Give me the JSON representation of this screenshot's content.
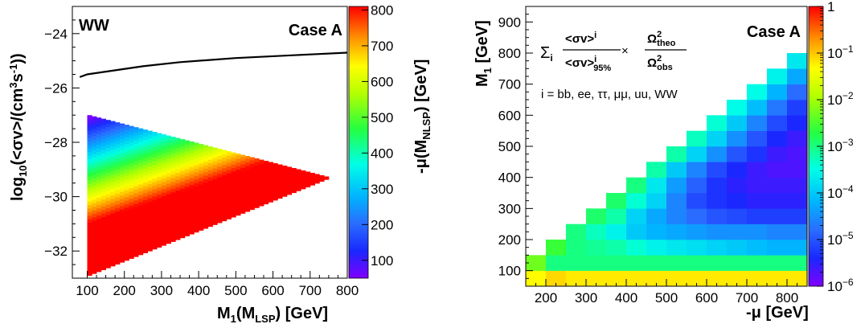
{
  "chart_data": [
    {
      "type": "heatmap",
      "panel_label": "WW",
      "case_label": "Case A",
      "xlabel": "M₁(Mₗₛₚ) [GeV]",
      "xlabel_main": "M",
      "xlabel_sub1": "1",
      "xlabel_mid": "(M",
      "xlabel_sub2": "LSP",
      "xlabel_end": ") [GeV]",
      "ylabel_main": "log",
      "ylabel_sub": "10",
      "ylabel_mid": "(<σv>/(cm",
      "ylabel_sup1": "3",
      "ylabel_s": "s",
      "ylabel_sup2": "-1",
      "ylabel_end": "))",
      "zlabel_main": "-μ(M",
      "zlabel_sub": "NLSP",
      "zlabel_end": ") [GeV]",
      "xlim": [
        60,
        800
      ],
      "ylim": [
        -33,
        -23
      ],
      "zlim": [
        50,
        810
      ],
      "x_ticks": [
        100,
        200,
        300,
        400,
        500,
        600,
        700,
        800
      ],
      "y_ticks": [
        -32,
        -30,
        -28,
        -26,
        -24
      ],
      "z_ticks": [
        100,
        200,
        300,
        400,
        500,
        600,
        700,
        800
      ],
      "region": {
        "apex_x": 750,
        "apex_y": -29.3,
        "x_min": 100,
        "y_top_at_xmin": -27.0,
        "y_bottom_at_xmin": -32.9
      },
      "limit_line": {
        "x": [
          80,
          100,
          150,
          250,
          350,
          500,
          650,
          800
        ],
        "y": [
          -25.6,
          -25.5,
          -25.4,
          -25.2,
          -25.05,
          -24.9,
          -24.8,
          -24.7
        ]
      }
    },
    {
      "type": "heatmap",
      "case_label": "Case A",
      "xlabel_main": "-μ [GeV]",
      "ylabel_main": "M",
      "ylabel_sub": "1",
      "ylabel_end": " [GeV]",
      "formula": {
        "sum": "Σ",
        "sum_sub": "i",
        "num": "<σv>",
        "num_sup": "i",
        "den": "<σv>",
        "den_sup": "i",
        "den_sub": "95%",
        "times": "×",
        "omega_num": "Ω",
        "omega_num_sup": "2",
        "omega_num_sub": "theo",
        "omega_den": "Ω",
        "omega_den_sup": "2",
        "omega_den_sub": "obs",
        "channels": "i = bb, ee, ττ, μμ, uu, WW"
      },
      "xlim": [
        150,
        850
      ],
      "ylim": [
        50,
        950
      ],
      "x_ticks": [
        200,
        300,
        400,
        500,
        600,
        700,
        800
      ],
      "y_ticks": [
        100,
        200,
        300,
        400,
        500,
        600,
        700,
        800,
        900
      ],
      "z_scale": "log",
      "zlim_log10": [
        -6,
        0
      ],
      "z_ticks": [
        {
          "exp": 0,
          "label": "1"
        },
        {
          "exp": -1,
          "label": "10",
          "sup": "−1"
        },
        {
          "exp": -2,
          "label": "10",
          "sup": "−2"
        },
        {
          "exp": -3,
          "label": "10",
          "sup": "−3"
        },
        {
          "exp": -4,
          "label": "10",
          "sup": "−4"
        },
        {
          "exp": -5,
          "label": "10",
          "sup": "−5"
        },
        {
          "exp": -6,
          "label": "10",
          "sup": "−6"
        }
      ],
      "x_bins": [
        150,
        200,
        250,
        300,
        350,
        400,
        450,
        500,
        550,
        600,
        650,
        700,
        750,
        800,
        850
      ],
      "y_bins": [
        50,
        100,
        150,
        200,
        250,
        300,
        350,
        400,
        450,
        500,
        550,
        600,
        650,
        700,
        750,
        800
      ],
      "cells_log10": [
        [
          -1.3,
          -1.1,
          -1.2,
          -1.2,
          -1.2,
          -1.2,
          -1.2,
          -1.2,
          -1.2,
          -1.2,
          -1.2,
          -1.2,
          -1.2,
          -1.2
        ],
        [
          -2.3,
          -3.0,
          -3.0,
          -3.0,
          -3.0,
          -3.0,
          -3.0,
          -3.0,
          -3.0,
          -3.0,
          -3.0,
          -3.0,
          -3.0,
          -3.0
        ],
        [
          null,
          -2.6,
          -3.0,
          -3.1,
          -3.2,
          -3.4,
          -3.6,
          -3.7,
          -3.8,
          -3.9,
          -4.0,
          -4.1,
          -4.2,
          -4.2
        ],
        [
          null,
          null,
          -3.0,
          -3.3,
          -3.6,
          -4.0,
          -4.2,
          -4.3,
          -4.4,
          -4.5,
          -4.5,
          -4.5,
          -4.6,
          -4.6
        ],
        [
          null,
          null,
          null,
          -2.9,
          -3.2,
          -3.9,
          -4.3,
          -4.6,
          -4.8,
          -5.0,
          -5.1,
          -5.2,
          -5.2,
          -5.2
        ],
        [
          null,
          null,
          null,
          null,
          -2.9,
          -3.4,
          -3.9,
          -4.6,
          -5.1,
          -5.3,
          -5.4,
          -5.5,
          -5.5,
          -5.5
        ],
        [
          null,
          null,
          null,
          null,
          null,
          -3.0,
          -3.7,
          -4.4,
          -4.9,
          -5.3,
          -5.5,
          -5.6,
          -5.6,
          -5.6
        ],
        [
          null,
          null,
          null,
          null,
          null,
          null,
          -3.2,
          -4.0,
          -4.6,
          -5.1,
          -5.4,
          -5.6,
          -5.7,
          -5.7
        ],
        [
          null,
          null,
          null,
          null,
          null,
          null,
          null,
          -3.2,
          -3.9,
          -4.5,
          -5.0,
          -5.3,
          -5.6,
          -5.7
        ],
        [
          null,
          null,
          null,
          null,
          null,
          null,
          null,
          null,
          -3.3,
          -3.9,
          -4.5,
          -5.0,
          -5.4,
          -5.6
        ],
        [
          null,
          null,
          null,
          null,
          null,
          null,
          null,
          null,
          null,
          -3.4,
          -4.0,
          -4.6,
          -5.1,
          -5.4
        ],
        [
          null,
          null,
          null,
          null,
          null,
          null,
          null,
          null,
          null,
          null,
          -3.5,
          -4.1,
          -4.7,
          -5.2
        ],
        [
          null,
          null,
          null,
          null,
          null,
          null,
          null,
          null,
          null,
          null,
          null,
          -3.5,
          -4.2,
          -4.8
        ],
        [
          null,
          null,
          null,
          null,
          null,
          null,
          null,
          null,
          null,
          null,
          null,
          null,
          -3.6,
          -4.3
        ],
        [
          null,
          null,
          null,
          null,
          null,
          null,
          null,
          null,
          null,
          null,
          null,
          null,
          null,
          -3.7
        ]
      ]
    }
  ]
}
